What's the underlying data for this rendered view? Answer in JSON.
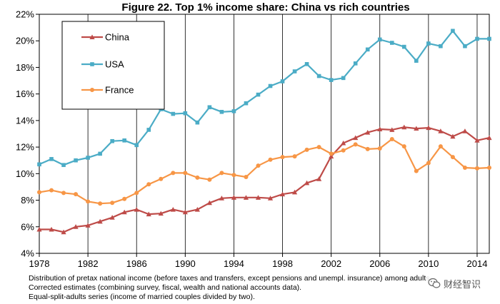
{
  "chart_data": {
    "type": "line",
    "title": "Figure 22. Top 1% income share: China vs rich countries",
    "x": [
      1978,
      1979,
      1980,
      1981,
      1982,
      1983,
      1984,
      1985,
      1986,
      1987,
      1988,
      1989,
      1990,
      1991,
      1992,
      1993,
      1994,
      1995,
      1996,
      1997,
      1998,
      1999,
      2000,
      2001,
      2002,
      2003,
      2004,
      2005,
      2006,
      2007,
      2008,
      2009,
      2010,
      2011,
      2012,
      2013,
      2014,
      2015
    ],
    "xticks": [
      1978,
      1982,
      1986,
      1990,
      1994,
      1998,
      2002,
      2006,
      2010,
      2014
    ],
    "xlim": [
      1978,
      2015
    ],
    "ylim": [
      4,
      22
    ],
    "yticks": [
      "4%",
      "6%",
      "8%",
      "10%",
      "12%",
      "14%",
      "16%",
      "18%",
      "20%",
      "22%"
    ],
    "yticks_values": [
      4,
      6,
      8,
      10,
      12,
      14,
      16,
      18,
      20,
      22
    ],
    "grid": "vertical",
    "legend_position": "top-left",
    "series": [
      {
        "name": "China",
        "color": "#be4b48",
        "marker": "triangle",
        "values": [
          5.8,
          5.8,
          5.6,
          6.0,
          6.1,
          6.4,
          6.7,
          7.1,
          7.3,
          6.95,
          7.0,
          7.3,
          7.1,
          7.3,
          7.8,
          8.15,
          8.2,
          8.2,
          8.2,
          8.15,
          8.45,
          8.6,
          9.3,
          9.6,
          11.3,
          12.3,
          12.7,
          13.1,
          13.35,
          13.3,
          13.5,
          13.4,
          13.45,
          13.2,
          12.8,
          13.2,
          12.5,
          12.7
        ]
      },
      {
        "name": "USA",
        "color": "#4bacc6",
        "marker": "square",
        "values": [
          10.7,
          11.1,
          10.65,
          11.0,
          11.2,
          11.5,
          12.45,
          12.5,
          12.15,
          13.3,
          14.85,
          14.5,
          14.55,
          13.85,
          15.0,
          14.65,
          14.7,
          15.3,
          15.95,
          16.6,
          16.95,
          17.7,
          18.25,
          17.35,
          17.05,
          17.2,
          18.3,
          19.35,
          20.1,
          19.85,
          19.55,
          18.5,
          19.8,
          19.6,
          20.75,
          19.6,
          20.15,
          20.15
        ]
      },
      {
        "name": "France",
        "color": "#f79646",
        "marker": "circle",
        "values": [
          8.6,
          8.75,
          8.55,
          8.45,
          7.9,
          7.75,
          7.8,
          8.1,
          8.55,
          9.2,
          9.6,
          10.05,
          10.05,
          9.7,
          9.55,
          10.05,
          9.9,
          9.75,
          10.6,
          11.05,
          11.25,
          11.3,
          11.8,
          12.0,
          11.5,
          11.75,
          12.2,
          11.85,
          11.9,
          12.6,
          12.05,
          10.2,
          10.8,
          12.05,
          11.25,
          10.45,
          10.4,
          10.45
        ]
      }
    ]
  },
  "notes": [
    "Distribution of pretax national income (before taxes and transfers, except pensions and unempl. insurance) among adults.",
    "Corrected estimates (combining survey, fiscal, wealth and national accounts data).",
    "Equal-split-adults series (income of married couples divided by two)."
  ],
  "watermark": {
    "text": "财经智识",
    "icon": "wechat-logo-icon"
  }
}
